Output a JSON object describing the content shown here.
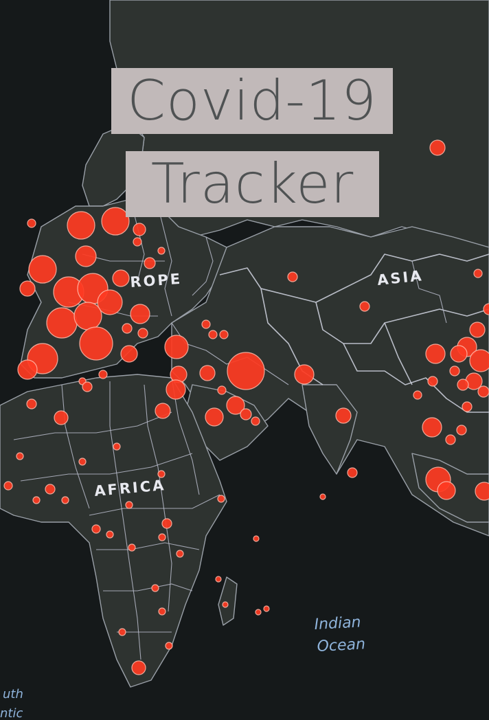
{
  "title": {
    "line1": "Covid-19",
    "line2": "Tracker"
  },
  "map": {
    "region_labels": {
      "europe": "ROPE",
      "asia": "ASIA",
      "africa": "AFRICA"
    },
    "ocean_labels": {
      "indian_line1": "Indian",
      "indian_line2": "Ocean",
      "atlantic_line1": "uth",
      "atlantic_line2": "ntic"
    },
    "dot_color": "#ff3b22",
    "land_color": "#2e3330",
    "ocean_color": "#15191a"
  },
  "colors": {
    "title_background": "#c1b9b9",
    "title_text": "#4f5253"
  }
}
